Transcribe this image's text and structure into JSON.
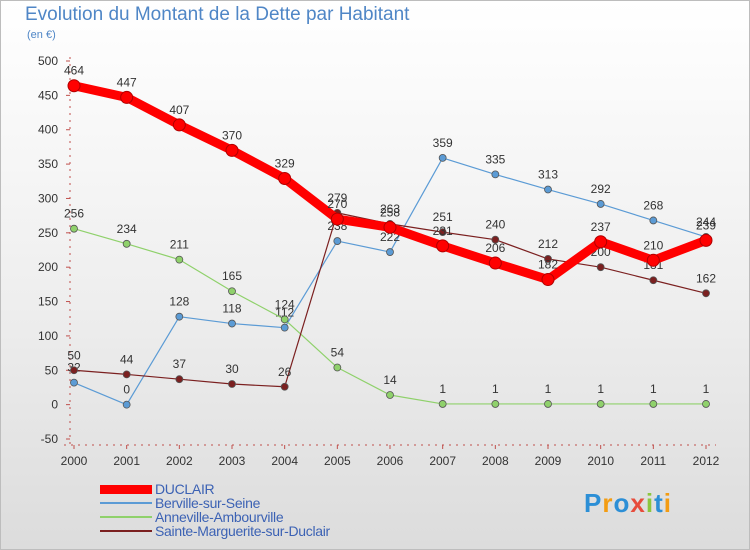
{
  "chart_data": {
    "type": "line",
    "title": "Evolution du Montant de la Dette par Habitant",
    "subtitle": "(en €)",
    "x": [
      "2000",
      "2001",
      "2002",
      "2003",
      "2004",
      "2005",
      "2006",
      "2007",
      "2008",
      "2009",
      "2010",
      "2011",
      "2012"
    ],
    "ylim": [
      -50,
      500
    ],
    "yticks": [
      -50,
      0,
      50,
      100,
      150,
      200,
      250,
      300,
      350,
      400,
      450,
      500
    ],
    "grid": false,
    "legend_position": "bottom-left",
    "series": [
      {
        "name": "DUCLAIR",
        "color": "#ff0000",
        "values": [
          464,
          447,
          407,
          370,
          329,
          270,
          258,
          231,
          206,
          182,
          237,
          210,
          239
        ]
      },
      {
        "name": "Berville-sur-Seine",
        "color": "#5b9bd5",
        "values": [
          32,
          0,
          128,
          118,
          112,
          238,
          222,
          359,
          335,
          313,
          292,
          268,
          244
        ]
      },
      {
        "name": "Anneville-Ambourville",
        "color": "#8fd16b",
        "values": [
          256,
          234,
          211,
          165,
          124,
          54,
          14,
          1,
          1,
          1,
          1,
          1,
          1
        ]
      },
      {
        "name": "Sainte-Marguerite-sur-Duclair",
        "color": "#7b2020",
        "values": [
          50,
          44,
          37,
          30,
          26,
          279,
          263,
          251,
          240,
          212,
          200,
          181,
          162
        ]
      }
    ]
  },
  "logo": {
    "letters": [
      "P",
      "r",
      "o",
      "x",
      "i",
      "t",
      "i"
    ],
    "colors": [
      "#2c8fd6",
      "#f39c12",
      "#2c8fd6",
      "#e74c3c",
      "#8cc63f",
      "#2c8fd6",
      "#f39c12"
    ]
  }
}
